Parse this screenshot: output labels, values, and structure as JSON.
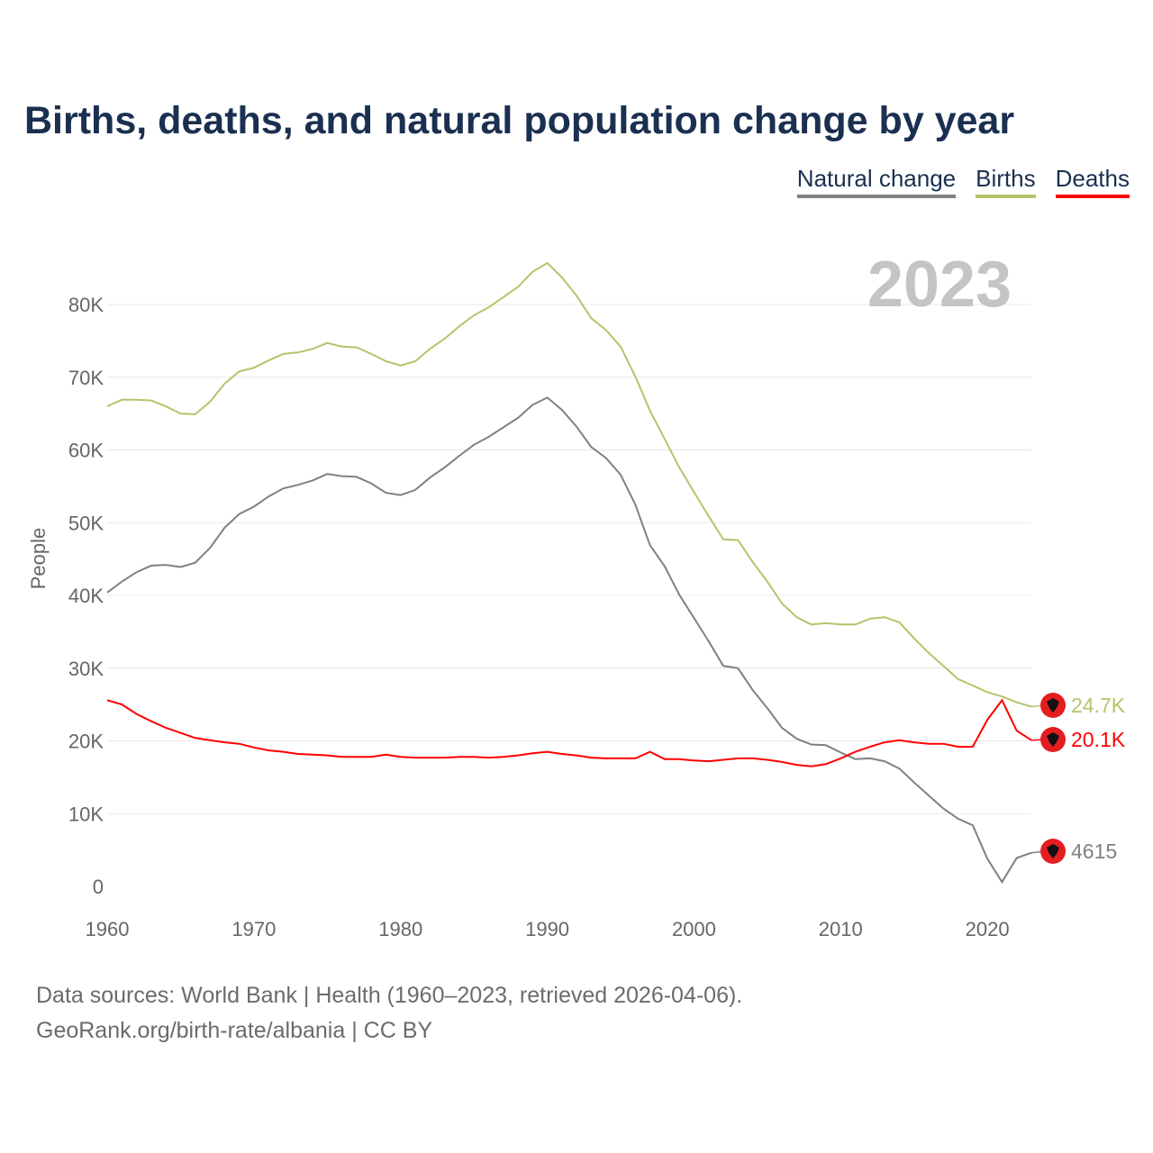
{
  "title": "Births, deaths, and natural population change by year",
  "footer": {
    "line1": "Data sources: World Bank | Health (1960–2023, retrieved 2026-04-06).",
    "line2": "GeoRank.org/birth-rate/albania | CC BY"
  },
  "chart_data": {
    "type": "line",
    "title": "Births, deaths, and natural population change by year",
    "ylabel": "People",
    "xlabel": "",
    "year_watermark": "2023",
    "ylim": [
      0,
      85700
    ],
    "xlim": [
      1960,
      2023
    ],
    "x_ticks": [
      "1960",
      "1970",
      "1980",
      "1990",
      "2000",
      "2010",
      "2020"
    ],
    "y_ticks": [
      {
        "value": 0,
        "label": "0"
      },
      {
        "value": 10000,
        "label": "10K"
      },
      {
        "value": 20000,
        "label": "20K"
      },
      {
        "value": 30000,
        "label": "30K"
      },
      {
        "value": 40000,
        "label": "40K"
      },
      {
        "value": 50000,
        "label": "50K"
      },
      {
        "value": 60000,
        "label": "60K"
      },
      {
        "value": 70000,
        "label": "70K"
      },
      {
        "value": 80000,
        "label": "80K"
      }
    ],
    "legend_position": "top-right",
    "x_start": 1960,
    "series": [
      {
        "name": "Natural change",
        "color": "#808080",
        "end_label": "4615",
        "values": [
          40.4,
          41.9,
          43.2,
          44.1,
          44.2,
          43.9,
          44.5,
          46.5,
          49.3,
          51.2,
          52.2,
          53.6,
          54.7,
          55.2,
          55.8,
          56.7,
          56.4,
          56.3,
          55.4,
          54.1,
          53.8,
          54.5,
          56.2,
          57.6,
          59.2,
          60.7,
          61.8,
          63.1,
          64.4,
          66.2,
          67.2,
          65.5,
          63.2,
          60.4,
          58.9,
          56.6,
          52.5,
          46.9,
          44.0,
          40.1,
          36.9,
          33.7,
          30.3,
          30.0,
          27.0,
          24.5,
          21.8,
          20.3,
          19.5,
          19.4,
          18.4,
          17.5,
          17.6,
          17.2,
          16.2,
          14.3,
          12.5,
          10.7,
          9.3,
          8.4,
          3.8,
          0.6,
          3.9,
          4.615
        ]
      },
      {
        "name": "Births",
        "color": "#b5c46a",
        "end_label": "24.7K",
        "values": [
          66.0,
          66.9,
          66.9,
          66.8,
          66.0,
          65.0,
          64.9,
          66.6,
          69.1,
          70.8,
          71.3,
          72.3,
          73.2,
          73.4,
          73.9,
          74.7,
          74.2,
          74.1,
          73.2,
          72.2,
          71.6,
          72.2,
          73.9,
          75.3,
          77.0,
          78.5,
          79.6,
          81.0,
          82.4,
          84.5,
          85.7,
          83.7,
          81.2,
          78.1,
          76.5,
          74.2,
          70.1,
          65.4,
          61.5,
          57.6,
          54.2,
          50.9,
          47.7,
          47.6,
          44.6,
          41.9,
          38.9,
          37.0,
          36.0,
          36.2,
          36.0,
          36.0,
          36.8,
          37.0,
          36.3,
          34.1,
          32.1,
          30.3,
          28.5,
          27.6,
          26.7,
          26.1,
          25.3,
          24.7
        ]
      },
      {
        "name": "Deaths",
        "color": "#ff0000",
        "end_label": "20.1K",
        "values": [
          25.6,
          25.0,
          23.7,
          22.7,
          21.8,
          21.1,
          20.4,
          20.1,
          19.8,
          19.6,
          19.1,
          18.7,
          18.5,
          18.2,
          18.1,
          18.0,
          17.8,
          17.8,
          17.8,
          18.1,
          17.8,
          17.7,
          17.7,
          17.7,
          17.8,
          17.8,
          17.7,
          17.8,
          18.0,
          18.3,
          18.5,
          18.2,
          18.0,
          17.7,
          17.6,
          17.6,
          17.6,
          18.5,
          17.5,
          17.5,
          17.3,
          17.2,
          17.4,
          17.6,
          17.6,
          17.4,
          17.1,
          16.7,
          16.5,
          16.8,
          17.6,
          18.5,
          19.2,
          19.8,
          20.1,
          19.8,
          19.6,
          19.6,
          19.2,
          19.2,
          22.9,
          25.6,
          21.4,
          20.1
        ]
      }
    ],
    "values_unit": "thousands"
  }
}
